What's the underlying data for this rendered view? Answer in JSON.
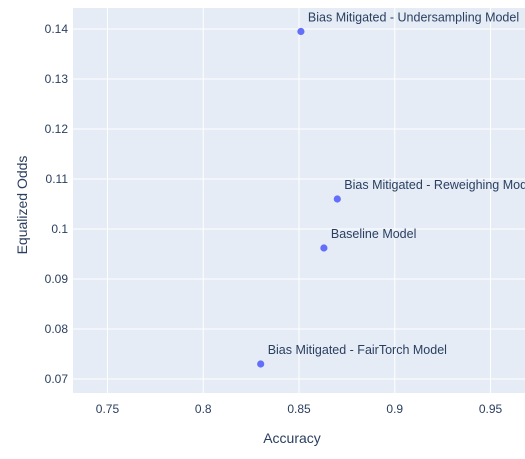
{
  "chart_data": {
    "type": "scatter",
    "xlabel": "Accuracy",
    "ylabel": "Equalized Odds",
    "xlim": [
      0.732,
      0.968
    ],
    "ylim": [
      0.0672,
      0.1442
    ],
    "xticks": [
      0.75,
      0.8,
      0.85,
      0.9,
      0.95
    ],
    "xtick_labels": [
      "0.75",
      "0.8",
      "0.85",
      "0.9",
      "0.95"
    ],
    "yticks": [
      0.07,
      0.08,
      0.09,
      0.1,
      0.11,
      0.12,
      0.13,
      0.14
    ],
    "ytick_labels": [
      "0.07",
      "0.08",
      "0.09",
      "0.1",
      "0.11",
      "0.12",
      "0.13",
      "0.14"
    ],
    "grid": true,
    "background_color": "#E5ECF6",
    "marker_color": "#636EFA",
    "points": [
      {
        "label": "Bias Mitigated - Undersampling Model",
        "x": 0.851,
        "y": 0.1395
      },
      {
        "label": "Bias Mitigated - Reweighing Model",
        "x": 0.87,
        "y": 0.106
      },
      {
        "label": "Baseline Model",
        "x": 0.863,
        "y": 0.0962
      },
      {
        "label": "Bias Mitigated - FairTorch Model",
        "x": 0.83,
        "y": 0.073
      }
    ]
  }
}
